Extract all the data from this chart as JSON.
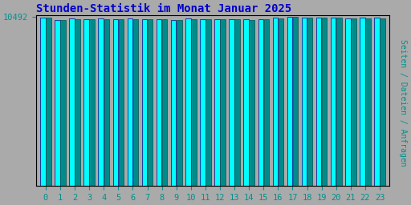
{
  "title": "Stunden-Statistik im Monat Januar 2025",
  "ylabel": "Seiten / Dateien / Anfragen",
  "xlabel_ticks": [
    0,
    1,
    2,
    3,
    4,
    5,
    6,
    7,
    8,
    9,
    10,
    11,
    12,
    13,
    14,
    15,
    16,
    17,
    18,
    19,
    20,
    21,
    22,
    23
  ],
  "ymax": 10492,
  "ymin": 0,
  "ytick_val": 10492,
  "bar1_values": [
    10445,
    10290,
    10375,
    10355,
    10375,
    10340,
    10375,
    10345,
    10360,
    10295,
    10365,
    10355,
    10355,
    10340,
    10335,
    10355,
    10415,
    10492,
    10440,
    10440,
    10435,
    10385,
    10430,
    10420
  ],
  "bar2_values": [
    10420,
    10270,
    10355,
    10335,
    10360,
    10320,
    10360,
    10325,
    10340,
    10275,
    10350,
    10335,
    10335,
    10320,
    10315,
    10335,
    10395,
    10472,
    10420,
    10420,
    10415,
    10365,
    10410,
    10400
  ],
  "bar1_color": "#00FFFF",
  "bar2_color": "#008B8B",
  "bar1_edge": "#00008B",
  "bar2_edge": "#005050",
  "title_color": "#0000CC",
  "ylabel_color": "#009090",
  "ytick_color": "#009090",
  "xtick_color": "#009090",
  "background_plot": "#AAAAAA",
  "background_fig": "#AAAAAA",
  "border_color": "#000000",
  "title_fontsize": 10,
  "ylabel_fontsize": 7,
  "tick_fontsize": 7.5
}
